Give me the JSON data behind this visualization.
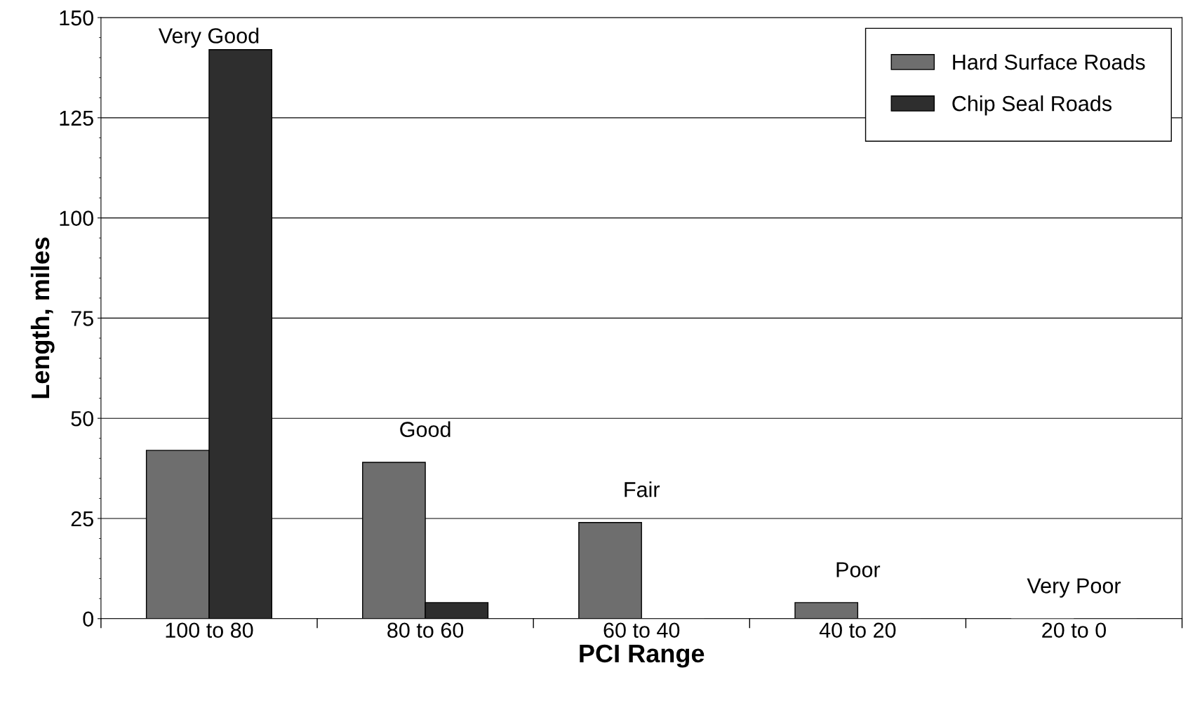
{
  "chart_data": {
    "type": "bar",
    "xlabel": "PCI Range",
    "ylabel": "Length, miles",
    "categories": [
      "100 to 80",
      "80 to 60",
      "60 to 40",
      "40 to 20",
      "20 to 0"
    ],
    "series": [
      {
        "name": "Hard Surface Roads",
        "color": "#6e6e6e",
        "values": [
          42,
          39,
          24,
          4,
          0
        ]
      },
      {
        "name": "Chip Seal Roads",
        "color": "#2e2e2e",
        "values": [
          142,
          4,
          0,
          0,
          0
        ]
      }
    ],
    "ylim": [
      0,
      150
    ],
    "yticks": [
      0,
      25,
      50,
      75,
      100,
      125,
      150
    ],
    "grid": "y",
    "legend": "top right",
    "annotations": [
      "Very Good",
      "Good",
      "Fair",
      "Poor",
      "Very Poor"
    ]
  }
}
